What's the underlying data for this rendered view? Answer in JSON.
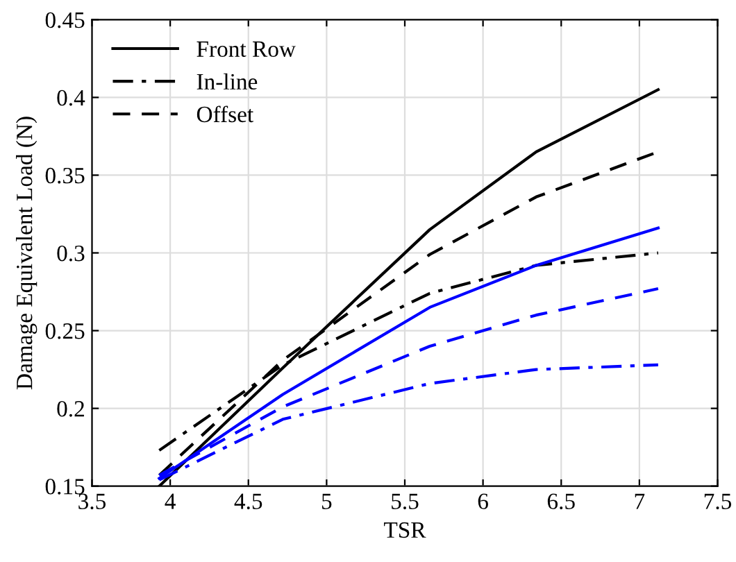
{
  "chart_data": {
    "type": "line",
    "xlabel": "TSR",
    "ylabel": "Damage Equivalent Load (N)",
    "xlim": [
      3.5,
      7.5
    ],
    "ylim": [
      0.15,
      0.45
    ],
    "xticks": [
      3.5,
      4,
      4.5,
      5,
      5.5,
      6,
      6.5,
      7,
      7.5
    ],
    "yticks": [
      0.15,
      0.2,
      0.25,
      0.3,
      0.35,
      0.4,
      0.45
    ],
    "grid": true,
    "legend": "top left",
    "marker": "none",
    "x": [
      3.93,
      4.72,
      5.66,
      6.34,
      7.12
    ],
    "series": [
      {
        "name": "Front Row",
        "color": "#000000",
        "line_style": "solid",
        "values": [
          0.15,
          0.226,
          0.315,
          0.365,
          0.405
        ]
      },
      {
        "name": "In-line",
        "color": "#000000",
        "line_style": "dashdot",
        "values": [
          0.173,
          0.228,
          0.274,
          0.292,
          0.3
        ]
      },
      {
        "name": "Offset",
        "color": "#000000",
        "line_style": "dashed",
        "values": [
          0.157,
          0.231,
          0.299,
          0.336,
          0.365
        ]
      },
      {
        "color": "#0000ff",
        "line_style": "solid",
        "values": [
          0.155,
          0.209,
          0.265,
          0.292,
          0.316
        ]
      },
      {
        "color": "#0000ff",
        "line_style": "dashdot",
        "values": [
          0.154,
          0.193,
          0.216,
          0.225,
          0.228
        ]
      },
      {
        "color": "#0000ff",
        "line_style": "dashed",
        "values": [
          0.157,
          0.201,
          0.24,
          0.26,
          0.277
        ]
      }
    ]
  }
}
